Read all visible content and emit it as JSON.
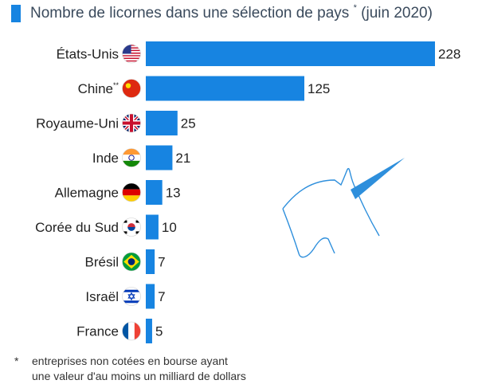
{
  "colors": {
    "bar": "#1784e1",
    "accent": "#1784e1",
    "unicorn": "#2e8fdc"
  },
  "title": {
    "text": "Nombre de licornes dans une sélection de pays",
    "marker": "*",
    "suffix": "(juin 2020)"
  },
  "footnote": {
    "marker": "*",
    "line1": "entreprises non cotées en bourse ayant",
    "line2": "une valeur d'au moins un milliard de dollars"
  },
  "unicorn_icon": "unicorn-head-icon",
  "chart_data": {
    "type": "bar",
    "orientation": "horizontal",
    "title": "Nombre de licornes dans une sélection de pays * (juin 2020)",
    "categories": [
      "États-Unis",
      "Chine",
      "Royaume-Uni",
      "Inde",
      "Allemagne",
      "Corée du Sud",
      "Brésil",
      "Israël",
      "France"
    ],
    "category_superscripts": [
      "",
      "**",
      "",
      "",
      "",
      "",
      "",
      "",
      ""
    ],
    "flags": [
      "flag-usa-icon",
      "flag-china-icon",
      "flag-uk-icon",
      "flag-india-icon",
      "flag-germany-icon",
      "flag-south-korea-icon",
      "flag-brazil-icon",
      "flag-israel-icon",
      "flag-france-icon"
    ],
    "values": [
      228,
      125,
      25,
      21,
      13,
      10,
      7,
      7,
      5
    ],
    "xlim": [
      0,
      228
    ],
    "grid": false,
    "legend": "none"
  }
}
